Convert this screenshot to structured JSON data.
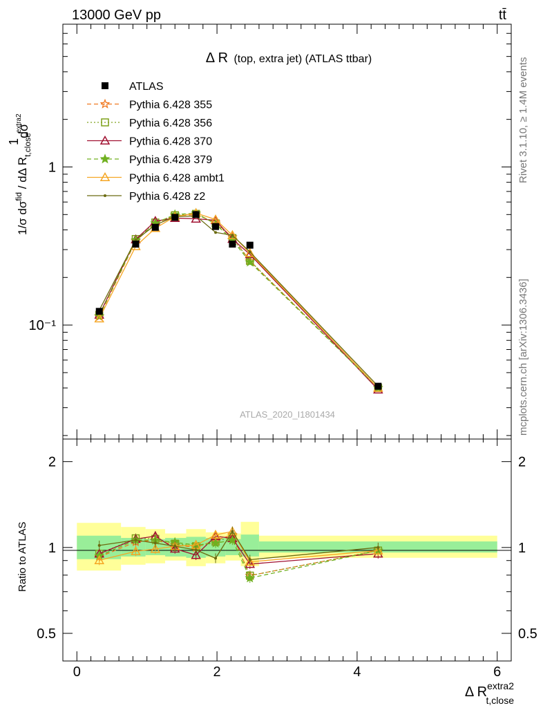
{
  "header": {
    "energy_label": "13000 GeV pp",
    "process_label": "tt̄"
  },
  "plot_title": "Δ R",
  "plot_subtitle": "(top, extra jet) (ATLAS ttbar)",
  "side_labels": {
    "rivet": "Rivet 3.1.10, ≥ 1.4M events",
    "mcplots": "mcplots.cern.ch [arXiv:1306.3436]"
  },
  "watermark": "ATLAS_2020_I1801434",
  "axes": {
    "y_top_label": "1/σ dσ^fid / dΔ R_t,close^extra2",
    "y_top_ticks": [
      {
        "value": 1,
        "label": "1"
      },
      {
        "value": 0.1,
        "label": "10⁻¹"
      }
    ],
    "y_bottom_label": "Ratio to ATLAS",
    "y_bottom_ticks": [
      {
        "value": 2,
        "label": "2"
      },
      {
        "value": 1,
        "label": "1"
      },
      {
        "value": 0.5,
        "label": "0.5"
      }
    ],
    "x_label_main": "Δ R",
    "x_label_sup": "extra2",
    "x_label_sub": "t,close",
    "x_ticks": [
      "0",
      "2",
      "4",
      "6"
    ]
  },
  "legend": [
    {
      "name": "ATLAS",
      "color": "#000000",
      "marker": "square-filled",
      "dash": "none"
    },
    {
      "name": "Pythia 6.428 355",
      "color": "#f07820",
      "marker": "star-open",
      "dash": "dash"
    },
    {
      "name": "Pythia 6.428 356",
      "color": "#7ea01a",
      "marker": "square-open",
      "dash": "dot"
    },
    {
      "name": "Pythia 6.428 370",
      "color": "#a01030",
      "marker": "triangle-open",
      "dash": "solid"
    },
    {
      "name": "Pythia 6.428 379",
      "color": "#70b020",
      "marker": "star-filled",
      "dash": "dash"
    },
    {
      "name": "Pythia 6.428 ambt1",
      "color": "#f5a623",
      "marker": "triangle-open",
      "dash": "solid"
    },
    {
      "name": "Pythia 6.428 z2",
      "color": "#6b6b10",
      "marker": "dot",
      "dash": "solid"
    }
  ],
  "chart_data": {
    "type": "line",
    "x": [
      0.32,
      0.84,
      1.12,
      1.4,
      1.7,
      1.98,
      2.22,
      2.47,
      4.3
    ],
    "x_range": [
      -0.2,
      6.2
    ],
    "y_top_range": [
      0.019,
      8.0
    ],
    "y_top_scale": "log",
    "y_bottom_range": [
      0.4,
      2.4
    ],
    "y_bottom_scale": "log",
    "data": {
      "name": "ATLAS",
      "values": [
        0.122,
        0.325,
        0.415,
        0.48,
        0.5,
        0.42,
        0.325,
        0.32,
        0.041
      ]
    },
    "series": [
      {
        "name": "Pythia 6.428 355",
        "values": [
          0.113,
          0.34,
          0.44,
          0.49,
          0.5,
          0.445,
          0.36,
          0.255,
          0.04
        ]
      },
      {
        "name": "Pythia 6.428 356",
        "values": [
          0.116,
          0.35,
          0.445,
          0.495,
          0.505,
          0.44,
          0.355,
          0.255,
          0.04
        ]
      },
      {
        "name": "Pythia 6.428 370",
        "values": [
          0.116,
          0.348,
          0.455,
          0.475,
          0.47,
          0.46,
          0.35,
          0.28,
          0.039
        ]
      },
      {
        "name": "Pythia 6.428 379",
        "values": [
          0.114,
          0.345,
          0.44,
          0.5,
          0.51,
          0.435,
          0.345,
          0.25,
          0.04
        ]
      },
      {
        "name": "Pythia 6.428 ambt1",
        "values": [
          0.11,
          0.315,
          0.41,
          0.485,
          0.51,
          0.465,
          0.37,
          0.285,
          0.04
        ]
      },
      {
        "name": "Pythia 6.428 z2",
        "values": [
          0.124,
          0.345,
          0.43,
          0.485,
          0.49,
          0.385,
          0.37,
          0.29,
          0.041
        ]
      }
    ],
    "ratio_band_inner": [
      {
        "x0": 0.0,
        "x1": 0.63,
        "lo": 0.91,
        "hi": 1.1
      },
      {
        "x0": 0.63,
        "x1": 0.98,
        "lo": 0.93,
        "hi": 1.08
      },
      {
        "x0": 0.98,
        "x1": 1.26,
        "lo": 0.94,
        "hi": 1.07
      },
      {
        "x0": 1.26,
        "x1": 1.56,
        "lo": 0.93,
        "hi": 1.08
      },
      {
        "x0": 1.56,
        "x1": 1.84,
        "lo": 0.92,
        "hi": 1.09
      },
      {
        "x0": 1.84,
        "x1": 2.12,
        "lo": 0.93,
        "hi": 1.08
      },
      {
        "x0": 2.12,
        "x1": 2.34,
        "lo": 0.94,
        "hi": 1.07
      },
      {
        "x0": 2.34,
        "x1": 2.6,
        "lo": 0.93,
        "hi": 1.11
      },
      {
        "x0": 2.6,
        "x1": 6.0,
        "lo": 0.96,
        "hi": 1.05
      }
    ],
    "ratio_band_outer": [
      {
        "x0": 0.0,
        "x1": 0.63,
        "lo": 0.83,
        "hi": 1.22
      },
      {
        "x0": 0.63,
        "x1": 0.98,
        "lo": 0.87,
        "hi": 1.18
      },
      {
        "x0": 0.98,
        "x1": 1.26,
        "lo": 0.88,
        "hi": 1.16
      },
      {
        "x0": 1.26,
        "x1": 1.56,
        "lo": 0.9,
        "hi": 1.12
      },
      {
        "x0": 1.56,
        "x1": 1.84,
        "lo": 0.86,
        "hi": 1.16
      },
      {
        "x0": 1.84,
        "x1": 2.12,
        "lo": 0.88,
        "hi": 1.13
      },
      {
        "x0": 2.12,
        "x1": 2.34,
        "lo": 0.9,
        "hi": 1.12
      },
      {
        "x0": 2.34,
        "x1": 2.6,
        "lo": 0.86,
        "hi": 1.23
      },
      {
        "x0": 2.6,
        "x1": 6.0,
        "lo": 0.92,
        "hi": 1.1
      }
    ]
  }
}
